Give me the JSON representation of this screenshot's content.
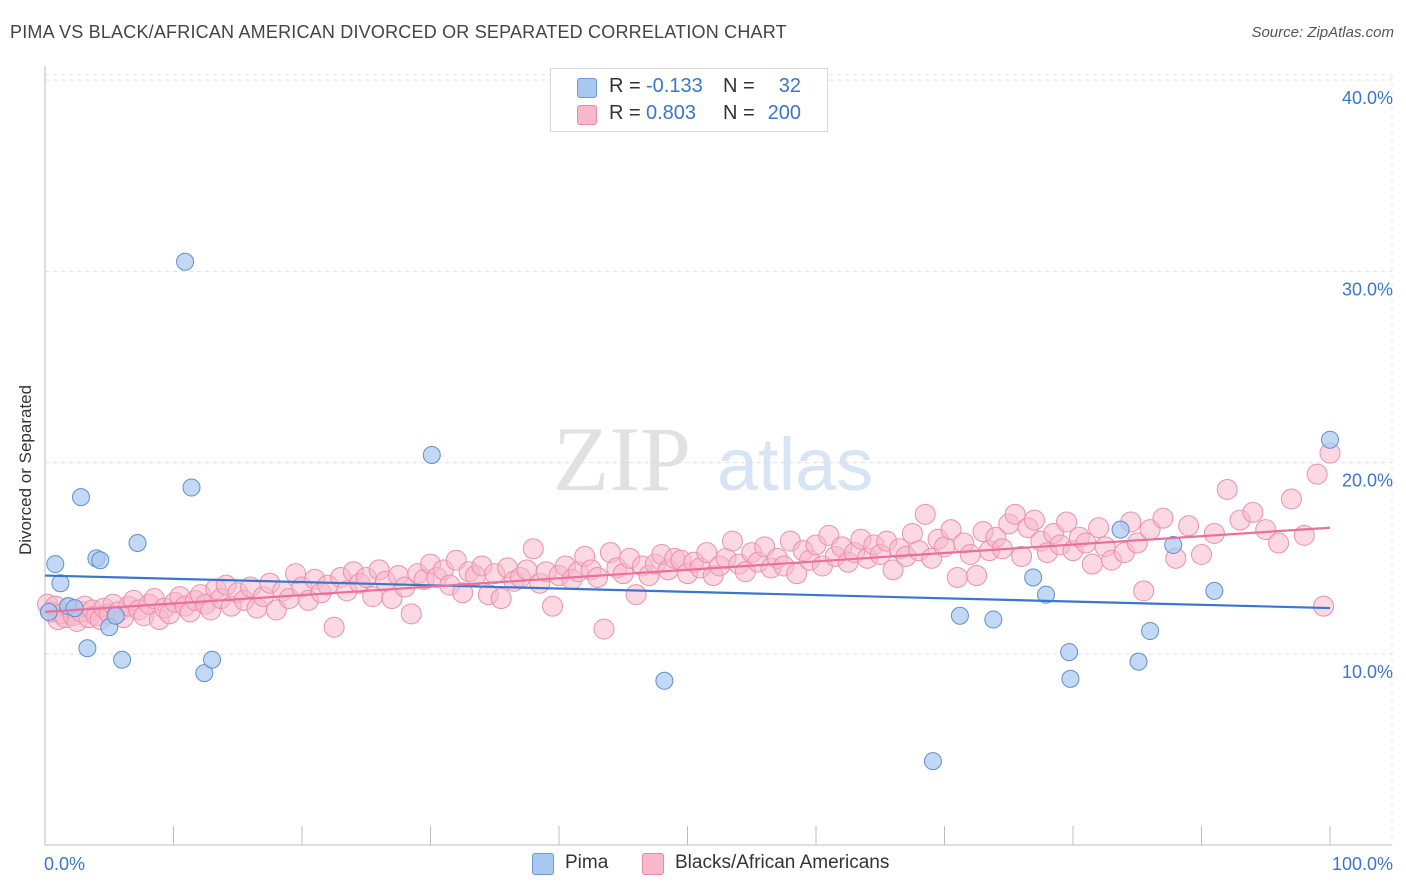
{
  "title": "PIMA VS BLACK/AFRICAN AMERICAN DIVORCED OR SEPARATED CORRELATION CHART",
  "source": "Source: ZipAtlas.com",
  "watermark": {
    "part1": "ZIP",
    "part2": "atlas"
  },
  "legend_top": [
    {
      "r_label": "R =",
      "r_value": "-0.133",
      "n_label": "N =",
      "n_value": "32",
      "color": "#a9c8f0"
    },
    {
      "r_label": "R =",
      "r_value": "0.803",
      "n_label": "N =",
      "n_value": "200",
      "color": "#f7b8cb"
    }
  ],
  "legend_bottom": [
    {
      "label": "Pima",
      "color": "#a9c8f0"
    },
    {
      "label": "Blacks/African Americans",
      "color": "#f7b8cb"
    }
  ],
  "chart_data": {
    "type": "scatter",
    "title": "PIMA VS BLACK/AFRICAN AMERICAN DIVORCED OR SEPARATED CORRELATION CHART",
    "xlabel": "",
    "ylabel": "Divorced or Separated",
    "xlim": [
      0,
      100
    ],
    "ylim": [
      0,
      42
    ],
    "x_tick_labels": [
      "0.0%",
      "100.0%"
    ],
    "y_ticks": [
      10,
      20,
      30,
      40
    ],
    "y_tick_labels": [
      "10.0%",
      "20.0%",
      "30.0%",
      "40.0%"
    ],
    "grid": true,
    "legend_position": "bottom",
    "colors": {
      "pima": "#3a76cc",
      "pima_fill": "#a9c8f0",
      "black": "#e8709a",
      "black_fill": "#f7b8cb",
      "tick_text": "#3a76cc"
    },
    "series": [
      {
        "name": "Pima",
        "trend": {
          "x": [
            0,
            100
          ],
          "y": [
            14.1,
            12.4
          ]
        },
        "points": [
          [
            0.3,
            12.2
          ],
          [
            0.8,
            14.7
          ],
          [
            1.2,
            13.7
          ],
          [
            1.8,
            12.5
          ],
          [
            2.3,
            12.4
          ],
          [
            2.8,
            18.2
          ],
          [
            3.3,
            10.3
          ],
          [
            4.0,
            15.0
          ],
          [
            4.3,
            14.9
          ],
          [
            5.0,
            11.4
          ],
          [
            5.5,
            12.0
          ],
          [
            6.0,
            9.7
          ],
          [
            7.2,
            15.8
          ],
          [
            10.9,
            30.5
          ],
          [
            11.4,
            18.7
          ],
          [
            12.4,
            9.0
          ],
          [
            13.0,
            9.7
          ],
          [
            30.1,
            20.4
          ],
          [
            48.2,
            8.6
          ],
          [
            69.1,
            4.4
          ],
          [
            71.2,
            12.0
          ],
          [
            73.8,
            11.8
          ],
          [
            76.9,
            14.0
          ],
          [
            77.9,
            13.1
          ],
          [
            79.7,
            10.1
          ],
          [
            79.8,
            8.7
          ],
          [
            83.7,
            16.5
          ],
          [
            85.1,
            9.6
          ],
          [
            86.0,
            11.2
          ],
          [
            87.8,
            15.7
          ],
          [
            91.0,
            13.3
          ],
          [
            100.0,
            21.2
          ]
        ]
      },
      {
        "name": "Blacks/African Americans",
        "trend": {
          "x": [
            0,
            100
          ],
          "y": [
            12.2,
            16.6
          ]
        },
        "points": [
          [
            0.2,
            12.6
          ],
          [
            0.5,
            12.2
          ],
          [
            0.8,
            12.5
          ],
          [
            1.0,
            11.8
          ],
          [
            1.3,
            12.1
          ],
          [
            1.6,
            11.9
          ],
          [
            1.9,
            12.4
          ],
          [
            2.2,
            12.0
          ],
          [
            2.5,
            11.7
          ],
          [
            2.8,
            12.2
          ],
          [
            3.1,
            12.5
          ],
          [
            3.4,
            11.9
          ],
          [
            3.7,
            12.3
          ],
          [
            4.0,
            12.0
          ],
          [
            4.3,
            11.8
          ],
          [
            4.6,
            12.4
          ],
          [
            5.0,
            12.1
          ],
          [
            5.3,
            12.6
          ],
          [
            5.7,
            12.2
          ],
          [
            6.1,
            11.9
          ],
          [
            6.5,
            12.5
          ],
          [
            6.9,
            12.8
          ],
          [
            7.3,
            12.3
          ],
          [
            7.7,
            12.0
          ],
          [
            8.1,
            12.6
          ],
          [
            8.5,
            12.9
          ],
          [
            8.9,
            11.8
          ],
          [
            9.3,
            12.4
          ],
          [
            9.7,
            12.1
          ],
          [
            10.1,
            12.7
          ],
          [
            10.5,
            13.0
          ],
          [
            10.9,
            12.5
          ],
          [
            11.3,
            12.2
          ],
          [
            11.7,
            12.8
          ],
          [
            12.1,
            13.1
          ],
          [
            12.5,
            12.6
          ],
          [
            12.9,
            12.3
          ],
          [
            13.3,
            13.4
          ],
          [
            13.7,
            12.9
          ],
          [
            14.1,
            13.6
          ],
          [
            14.5,
            12.5
          ],
          [
            15.0,
            13.2
          ],
          [
            15.5,
            12.8
          ],
          [
            16.0,
            13.5
          ],
          [
            16.5,
            12.4
          ],
          [
            17.0,
            13.0
          ],
          [
            17.5,
            13.7
          ],
          [
            18.0,
            12.3
          ],
          [
            18.5,
            13.3
          ],
          [
            19.0,
            12.9
          ],
          [
            19.5,
            14.2
          ],
          [
            20.0,
            13.5
          ],
          [
            20.5,
            12.8
          ],
          [
            21.0,
            13.9
          ],
          [
            21.5,
            13.2
          ],
          [
            22.0,
            13.6
          ],
          [
            22.5,
            11.4
          ],
          [
            23.0,
            14.0
          ],
          [
            23.5,
            13.3
          ],
          [
            24.0,
            14.3
          ],
          [
            24.5,
            13.7
          ],
          [
            25.0,
            14.0
          ],
          [
            25.5,
            13.0
          ],
          [
            26.0,
            14.4
          ],
          [
            26.5,
            13.8
          ],
          [
            27.0,
            12.9
          ],
          [
            27.5,
            14.1
          ],
          [
            28.0,
            13.5
          ],
          [
            28.5,
            12.1
          ],
          [
            29.0,
            14.2
          ],
          [
            29.5,
            13.9
          ],
          [
            30.0,
            14.7
          ],
          [
            30.5,
            14.0
          ],
          [
            31.0,
            14.4
          ],
          [
            31.5,
            13.6
          ],
          [
            32.0,
            14.9
          ],
          [
            32.5,
            13.2
          ],
          [
            33.0,
            14.3
          ],
          [
            33.5,
            14.1
          ],
          [
            34.0,
            14.6
          ],
          [
            34.5,
            13.1
          ],
          [
            35.0,
            14.2
          ],
          [
            35.5,
            12.9
          ],
          [
            36.0,
            14.5
          ],
          [
            36.5,
            13.8
          ],
          [
            37.0,
            14.0
          ],
          [
            37.5,
            14.4
          ],
          [
            38.0,
            15.5
          ],
          [
            38.5,
            13.7
          ],
          [
            39.0,
            14.3
          ],
          [
            39.5,
            12.5
          ],
          [
            40.0,
            14.1
          ],
          [
            40.5,
            14.6
          ],
          [
            41.0,
            13.9
          ],
          [
            41.5,
            14.3
          ],
          [
            42.0,
            15.1
          ],
          [
            42.5,
            14.4
          ],
          [
            43.0,
            14.0
          ],
          [
            43.5,
            11.3
          ],
          [
            44.0,
            15.3
          ],
          [
            44.5,
            14.5
          ],
          [
            45.0,
            14.2
          ],
          [
            45.5,
            15.0
          ],
          [
            46.0,
            13.1
          ],
          [
            46.5,
            14.6
          ],
          [
            47.0,
            14.1
          ],
          [
            47.5,
            14.7
          ],
          [
            48.0,
            15.2
          ],
          [
            48.5,
            14.4
          ],
          [
            49.0,
            15.0
          ],
          [
            49.5,
            14.9
          ],
          [
            50.0,
            14.2
          ],
          [
            50.5,
            14.8
          ],
          [
            51.0,
            14.5
          ],
          [
            51.5,
            15.3
          ],
          [
            52.0,
            14.1
          ],
          [
            52.5,
            14.6
          ],
          [
            53.0,
            15.0
          ],
          [
            53.5,
            15.9
          ],
          [
            54.0,
            14.7
          ],
          [
            54.5,
            14.3
          ],
          [
            55.0,
            15.3
          ],
          [
            55.5,
            14.8
          ],
          [
            56.0,
            15.6
          ],
          [
            56.5,
            14.5
          ],
          [
            57.0,
            15.0
          ],
          [
            57.5,
            14.6
          ],
          [
            58.0,
            15.9
          ],
          [
            58.5,
            14.2
          ],
          [
            59.0,
            15.4
          ],
          [
            59.5,
            14.9
          ],
          [
            60.0,
            15.7
          ],
          [
            60.5,
            14.6
          ],
          [
            61.0,
            16.2
          ],
          [
            61.5,
            15.1
          ],
          [
            62.0,
            15.6
          ],
          [
            62.5,
            14.8
          ],
          [
            63.0,
            15.3
          ],
          [
            63.5,
            16.0
          ],
          [
            64.0,
            15.0
          ],
          [
            64.5,
            15.7
          ],
          [
            65.0,
            15.2
          ],
          [
            65.5,
            15.9
          ],
          [
            66.0,
            14.4
          ],
          [
            66.5,
            15.5
          ],
          [
            67.0,
            15.1
          ],
          [
            67.5,
            16.3
          ],
          [
            68.0,
            15.4
          ],
          [
            68.5,
            17.3
          ],
          [
            69.0,
            15.0
          ],
          [
            69.5,
            16.0
          ],
          [
            70.0,
            15.6
          ],
          [
            70.5,
            16.5
          ],
          [
            71.0,
            14.0
          ],
          [
            71.5,
            15.8
          ],
          [
            72.0,
            15.2
          ],
          [
            72.5,
            14.1
          ],
          [
            73.0,
            16.4
          ],
          [
            73.5,
            15.4
          ],
          [
            74.0,
            16.1
          ],
          [
            74.5,
            15.5
          ],
          [
            75.0,
            16.8
          ],
          [
            75.5,
            17.3
          ],
          [
            76.0,
            15.1
          ],
          [
            76.5,
            16.6
          ],
          [
            77.0,
            17.0
          ],
          [
            77.5,
            15.9
          ],
          [
            78.0,
            15.3
          ],
          [
            78.5,
            16.3
          ],
          [
            79.0,
            15.7
          ],
          [
            79.5,
            16.9
          ],
          [
            80.0,
            15.4
          ],
          [
            80.5,
            16.1
          ],
          [
            81.0,
            15.8
          ],
          [
            81.5,
            14.7
          ],
          [
            82.0,
            16.6
          ],
          [
            82.5,
            15.6
          ],
          [
            83.0,
            14.9
          ],
          [
            84.0,
            15.3
          ],
          [
            84.5,
            16.9
          ],
          [
            85.0,
            15.8
          ],
          [
            85.5,
            13.3
          ],
          [
            86.0,
            16.5
          ],
          [
            87.0,
            17.1
          ],
          [
            88.0,
            15.0
          ],
          [
            89.0,
            16.7
          ],
          [
            90.0,
            15.2
          ],
          [
            91.0,
            16.3
          ],
          [
            92.0,
            18.6
          ],
          [
            93.0,
            17.0
          ],
          [
            94.0,
            17.4
          ],
          [
            95.0,
            16.5
          ],
          [
            96.0,
            15.8
          ],
          [
            97.0,
            18.1
          ],
          [
            98.0,
            16.2
          ],
          [
            99.0,
            19.4
          ],
          [
            99.5,
            12.5
          ],
          [
            100.0,
            20.5
          ]
        ]
      }
    ]
  }
}
